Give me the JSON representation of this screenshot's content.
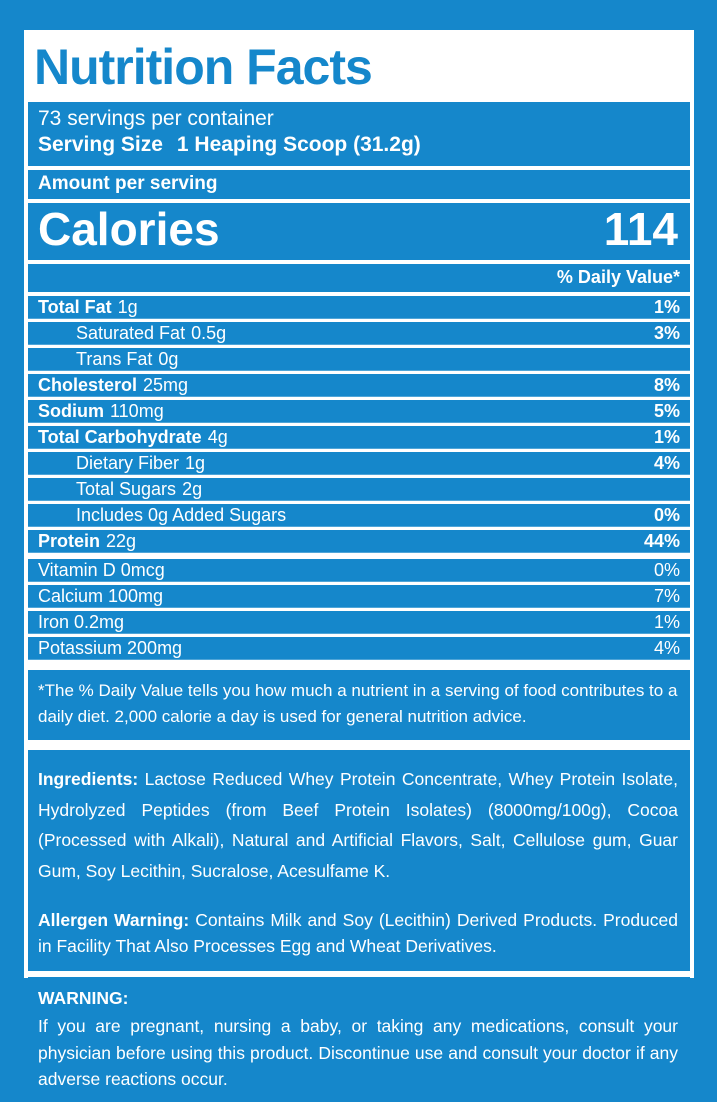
{
  "colors": {
    "blue": "#1587cb",
    "white": "#ffffff"
  },
  "label": {
    "title": "Nutrition Facts",
    "servings_per_container": "73 servings per container",
    "serving_size_label": "Serving Size",
    "serving_size_value": "1 Heaping Scoop (31.2g)",
    "amount_per_serving": "Amount per serving",
    "calories_label": "Calories",
    "calories_value": "114",
    "daily_value_header": "% Daily Value*",
    "nutrients": [
      {
        "name": "Total Fat",
        "amount": "1g",
        "dv": "1%",
        "bold": true,
        "indent": 0
      },
      {
        "name": "Saturated Fat",
        "amount": "0.5g",
        "dv": "3%",
        "bold": false,
        "indent": 1
      },
      {
        "name": "Trans Fat",
        "amount": "0g",
        "dv": "",
        "bold": false,
        "indent": 1
      },
      {
        "name": "Cholesterol",
        "amount": "25mg",
        "dv": "8%",
        "bold": true,
        "indent": 0
      },
      {
        "name": "Sodium",
        "amount": "110mg",
        "dv": "5%",
        "bold": true,
        "indent": 0
      },
      {
        "name": "Total Carbohydrate",
        "amount": "4g",
        "dv": "1%",
        "bold": true,
        "indent": 0
      },
      {
        "name": "Dietary Fiber",
        "amount": "1g",
        "dv": "4%",
        "bold": false,
        "indent": 1
      },
      {
        "name": "Total Sugars",
        "amount": "2g",
        "dv": "",
        "bold": false,
        "indent": 1
      },
      {
        "name": "Includes 0g Added Sugars",
        "amount": "",
        "dv": "0%",
        "bold": false,
        "indent": 1
      },
      {
        "name": "Protein",
        "amount": "22g",
        "dv": "44%",
        "bold": true,
        "indent": 0
      }
    ],
    "vitamins": [
      {
        "name": "Vitamin D 0mcg",
        "dv": "0%"
      },
      {
        "name": "Calcium 100mg",
        "dv": "7%"
      },
      {
        "name": "Iron 0.2mg",
        "dv": "1%"
      },
      {
        "name": "Potassium 200mg",
        "dv": "4%"
      }
    ],
    "footnote": "*The % Daily Value tells you how much a nutrient in a serving of food contributes to a daily diet. 2,000 calorie a day is used for general nutrition advice.",
    "ingredients_label": "Ingredients:",
    "ingredients_text": "Lactose Reduced Whey Protein Concentrate, Whey Protein Isolate, Hydrolyzed Peptides (from Beef Protein Isolates) (8000mg/100g), Cocoa (Processed with Alkali), Natural and Artificial Flavors, Salt, Cellulose gum, Guar Gum, Soy Lecithin, Sucralose, Acesulfame K.",
    "allergen_label": "Allergen Warning:",
    "allergen_text": "Contains Milk and Soy (Lecithin) Derived Products. Produced in Facility That Also Processes Egg and Wheat Derivatives.",
    "warning_label": "WARNING:",
    "warning_text": "If you are pregnant, nursing a baby, or taking any medications, consult your physician before using this product. Discontinue use and consult your doctor if any adverse reactions occur."
  }
}
